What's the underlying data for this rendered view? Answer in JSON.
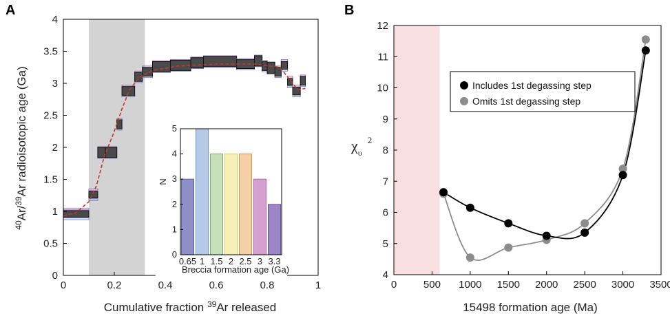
{
  "chart_data": [
    {
      "panel_label": "A",
      "type": "line",
      "xlabel_prefix": "Cumulative fraction ",
      "xlabel_sup": "39",
      "xlabel_suffix": "Ar released",
      "ylabel_sup1": "40",
      "ylabel_mid": "Ar/",
      "ylabel_sup2": "39",
      "ylabel_suffix": "Ar radioisotopic age (Ga)",
      "xlim": [
        0,
        1
      ],
      "ylim": [
        0,
        4
      ],
      "xticks": [
        "0",
        "0.2",
        "0.4",
        "0.6",
        "0.8",
        "1"
      ],
      "yticks": [
        "0",
        "0.5",
        "1",
        "1.5",
        "2",
        "2.5",
        "3",
        "3.5",
        "4"
      ],
      "shaded_region": {
        "x": [
          0.1,
          0.32
        ],
        "color": "#d3d3d3"
      },
      "measured_steps": [
        {
          "x0": 0.0,
          "x1": 0.1,
          "y": 0.96,
          "err": 0.05
        },
        {
          "x0": 0.1,
          "x1": 0.135,
          "y": 1.26,
          "err": 0.05
        },
        {
          "x0": 0.135,
          "x1": 0.165,
          "y": 1.92,
          "err": 0.08
        },
        {
          "x0": 0.165,
          "x1": 0.21,
          "y": 1.92,
          "err": 0.08
        },
        {
          "x0": 0.21,
          "x1": 0.23,
          "y": 2.36,
          "err": 0.07
        },
        {
          "x0": 0.23,
          "x1": 0.28,
          "y": 2.88,
          "err": 0.07
        },
        {
          "x0": 0.28,
          "x1": 0.31,
          "y": 3.1,
          "err": 0.07
        },
        {
          "x0": 0.31,
          "x1": 0.35,
          "y": 3.18,
          "err": 0.07
        },
        {
          "x0": 0.35,
          "x1": 0.42,
          "y": 3.26,
          "err": 0.08
        },
        {
          "x0": 0.42,
          "x1": 0.5,
          "y": 3.28,
          "err": 0.08
        },
        {
          "x0": 0.5,
          "x1": 0.55,
          "y": 3.32,
          "err": 0.08
        },
        {
          "x0": 0.55,
          "x1": 0.68,
          "y": 3.34,
          "err": 0.08
        },
        {
          "x0": 0.68,
          "x1": 0.75,
          "y": 3.3,
          "err": 0.07
        },
        {
          "x0": 0.75,
          "x1": 0.78,
          "y": 3.35,
          "err": 0.08
        },
        {
          "x0": 0.78,
          "x1": 0.8,
          "y": 3.27,
          "err": 0.07
        },
        {
          "x0": 0.8,
          "x1": 0.83,
          "y": 3.24,
          "err": 0.09
        },
        {
          "x0": 0.83,
          "x1": 0.855,
          "y": 3.18,
          "err": 0.07
        },
        {
          "x0": 0.855,
          "x1": 0.88,
          "y": 3.28,
          "err": 0.06
        },
        {
          "x0": 0.88,
          "x1": 0.9,
          "y": 3.02,
          "err": 0.05
        },
        {
          "x0": 0.9,
          "x1": 0.93,
          "y": 2.88,
          "err": 0.06
        },
        {
          "x0": 0.93,
          "x1": 0.95,
          "y": 3.04,
          "err": 0.07
        }
      ],
      "model_curve": {
        "x": [
          0.0,
          0.05,
          0.1,
          0.13,
          0.16,
          0.2,
          0.23,
          0.26,
          0.3,
          0.35,
          0.45,
          0.6,
          0.75,
          0.85,
          0.88,
          0.92,
          0.95
        ],
        "y": [
          0.93,
          0.98,
          1.15,
          1.4,
          1.85,
          2.25,
          2.6,
          2.9,
          3.1,
          3.2,
          3.27,
          3.3,
          3.3,
          3.25,
          3.1,
          2.9,
          2.92
        ]
      },
      "model_colors": [
        "#6a6fb8",
        "#7ea8d8",
        "#8cc080",
        "#e8d860",
        "#f0a060",
        "#c070b0",
        "#8a60b0"
      ],
      "inset": {
        "type": "bar",
        "ylabel": "N",
        "xlabel": "Breccia formation age (Ga)",
        "ylim": [
          0,
          5
        ],
        "yticks": [
          "0",
          "1",
          "2",
          "3",
          "4",
          "5"
        ],
        "categories": [
          "0.65",
          "1",
          "1.5",
          "2",
          "2.5",
          "3",
          "3.3"
        ],
        "values": [
          3,
          5,
          4,
          4,
          4,
          3,
          2
        ],
        "colors": [
          "#8d8fc6",
          "#b6c9e6",
          "#c6e0b8",
          "#f5f0b6",
          "#f3d0a6",
          "#d3a0cf",
          "#9a86c4"
        ],
        "edge_colors": [
          "#5a5da5",
          "#6f94c9",
          "#7cb36a",
          "#d8cf60",
          "#dc9650",
          "#b068a8",
          "#6a54a0"
        ]
      }
    },
    {
      "panel_label": "B",
      "type": "line",
      "xlabel": "15498 formation age (Ma)",
      "ylabel_main": "χ",
      "ylabel_sub": "υ",
      "ylabel_sup": "2",
      "xlim": [
        0,
        3500
      ],
      "ylim": [
        4,
        12
      ],
      "xticks": [
        "0",
        "500",
        "1000",
        "1500",
        "2000",
        "2500",
        "3000",
        "3500"
      ],
      "yticks": [
        "4",
        "5",
        "6",
        "7",
        "8",
        "9",
        "10",
        "11",
        "12"
      ],
      "shaded_region": {
        "x": [
          0,
          600
        ],
        "color": "#f7dfe2"
      },
      "series": [
        {
          "name": "Includes 1st degassing step",
          "color": "#000000",
          "x": [
            650,
            1000,
            1500,
            2000,
            2500,
            3000,
            3300
          ],
          "y": [
            6.65,
            6.15,
            5.65,
            5.25,
            5.35,
            7.2,
            11.2
          ]
        },
        {
          "name": "Omits 1st degassing step",
          "color": "#8c8c8c",
          "x": [
            650,
            1000,
            1500,
            2000,
            2500,
            3000,
            3300
          ],
          "y": [
            6.6,
            4.55,
            4.87,
            5.12,
            5.65,
            7.4,
            11.55
          ]
        }
      ],
      "legend_position": "upper-center"
    }
  ]
}
